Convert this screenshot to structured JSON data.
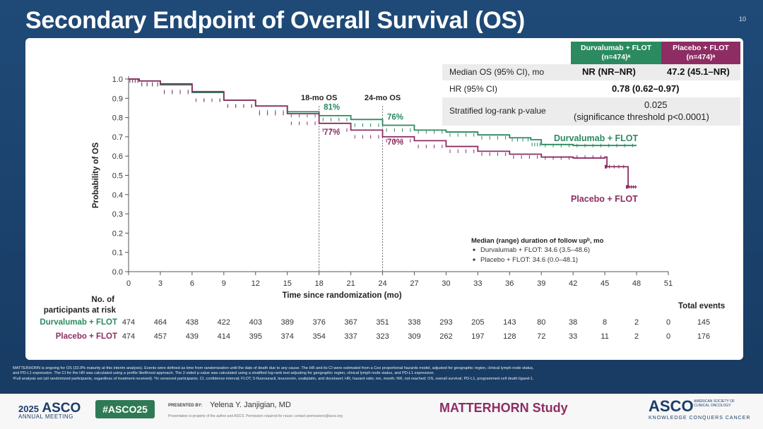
{
  "slide": {
    "title": "Secondary Endpoint of Overall Survival (OS)",
    "slide_number": "10"
  },
  "colors": {
    "durvalumab": "#2b8a5f",
    "placebo": "#8d2d63",
    "brand_navy": "#1a3d6a"
  },
  "table": {
    "header_durvalumab": "Durvalumab + FLOT (n=474)ᵃ",
    "header_durvalumab_l1": "Durvalumab + FLOT",
    "header_durvalumab_l2": "(n=474)ᵃ",
    "header_placebo_l1": "Placebo + FLOT",
    "header_placebo_l2": "(n=474)ᵃ",
    "rows": [
      {
        "label": "Median OS (95% CI), mo",
        "durvalumab": "NR (NR–NR)",
        "placebo": "47.2 (45.1–NR)"
      },
      {
        "label": "HR (95% CI)",
        "value": "0.78 (0.62–0.97)"
      },
      {
        "label": "Stratified log-rank p-value",
        "value_l1": "0.025",
        "value_l2": "(significance threshold p<0.0001)"
      }
    ]
  },
  "chart_data": {
    "type": "line",
    "title": "",
    "xlabel": "Time since randomization (mo)",
    "ylabel": "Probability of OS",
    "xlim": [
      0,
      51
    ],
    "ylim": [
      0,
      1.0
    ],
    "x_ticks": [
      0,
      3,
      6,
      9,
      12,
      15,
      18,
      21,
      24,
      27,
      30,
      33,
      36,
      39,
      42,
      45,
      48,
      51
    ],
    "y_ticks": [
      0.0,
      0.1,
      0.2,
      0.3,
      0.4,
      0.5,
      0.6,
      0.7,
      0.8,
      0.9,
      1.0
    ],
    "y_tick_labels": [
      "0.0",
      "0.1",
      "0.2",
      "0.3",
      "0.4",
      "0.5",
      "0.6",
      "0.7",
      "0.8",
      "0.9",
      "1.0"
    ],
    "series": [
      {
        "name": "Durvalumab + FLOT",
        "color": "#2b8a5f",
        "x": [
          0,
          1,
          3,
          6,
          9,
          12,
          15,
          18,
          21,
          24,
          27,
          30,
          33,
          36,
          38,
          39,
          42,
          45,
          48
        ],
        "y": [
          1.0,
          0.99,
          0.97,
          0.93,
          0.89,
          0.86,
          0.83,
          0.81,
          0.79,
          0.76,
          0.735,
          0.725,
          0.71,
          0.695,
          0.685,
          0.66,
          0.655,
          0.655,
          0.655
        ]
      },
      {
        "name": "Placebo + FLOT",
        "color": "#8d2d63",
        "x": [
          0,
          1,
          3,
          6,
          9,
          12,
          15,
          18,
          21,
          24,
          27,
          30,
          33,
          36,
          39,
          42,
          45,
          45.2,
          47,
          47.2,
          48
        ],
        "y": [
          1.0,
          0.99,
          0.975,
          0.935,
          0.89,
          0.86,
          0.82,
          0.77,
          0.735,
          0.7,
          0.68,
          0.65,
          0.625,
          0.61,
          0.595,
          0.59,
          0.595,
          0.545,
          0.545,
          0.44,
          0.44
        ]
      }
    ],
    "landmarks": [
      {
        "label": "18-mo OS",
        "x": 18,
        "durvalumab": "81%",
        "placebo": "77%"
      },
      {
        "label": "24-mo OS",
        "x": 24,
        "durvalumab": "76%",
        "placebo": "70%"
      }
    ],
    "annotations": {
      "follow_up_title": "Median (range) duration of follow upᵇ, mo",
      "follow_up_durvalumab": "Durvalumab + FLOT: 34.6 (3.5–48.6)",
      "follow_up_placebo": "Placebo + FLOT: 34.6 (0.0–48.1)"
    },
    "risk_table": {
      "title_l1": "No. of",
      "title_l2": "participants at risk",
      "total_events_label": "Total events",
      "rows": [
        {
          "name": "Durvalumab + FLOT",
          "values": [
            "474",
            "464",
            "438",
            "422",
            "403",
            "389",
            "376",
            "367",
            "351",
            "338",
            "293",
            "205",
            "143",
            "80",
            "38",
            "8",
            "2",
            "0"
          ],
          "total": "145"
        },
        {
          "name": "Placebo + FLOT",
          "values": [
            "474",
            "457",
            "439",
            "414",
            "395",
            "374",
            "354",
            "337",
            "323",
            "309",
            "262",
            "197",
            "128",
            "72",
            "33",
            "11",
            "2",
            "0"
          ],
          "total": "176"
        }
      ]
    }
  },
  "footnote": {
    "l1": "MATTERHORN is ongoing for OS (33.9% maturity at this interim analysis). Events were defined as time from randomization until the date of death due to any cause. The HR and its CI were estimated from a Cox proportional hazards model, adjusted for geographic region, clinical lymph node status,",
    "l2": "and PD-L1 expression. The CI for the HR was calculated using a profile likelihood approach. The 2-sided p-value was calculated using a stratified log-rank test adjusting for geographic region, clinical lymph node status, and PD-L1 expression.",
    "l3": "ᵃFull analysis set (all randomized participants, regardless of treatment received). ᵇIn censored participants. CI, confidence interval; FLOT, 5-fluorouracil, leucovorin, oxaliplatin, and docetaxel; HR, hazard ratio; mo, month; NR, not reached; OS, overall survival; PD-L1, programmed cell death ligand-1."
  },
  "footer": {
    "asco_year": "2025",
    "asco_word": "ASCO",
    "asco_meeting": "ANNUAL MEETING",
    "hashtag": "#ASCO25",
    "presented_by": "PRESENTED BY:",
    "presenter": "Yelena Y. Janjigian, MD",
    "presentation_note": "Presentation is property of the author and ASCO. Permission required for reuse; contact permissions@asco.org",
    "study_name": "MATTERHORN Study",
    "asco_right": "ASCO",
    "asco_right_sub": "AMERICAN SOCIETY OF CLINICAL ONCOLOGY",
    "asco_tagline": "KNOWLEDGE CONQUERS CANCER"
  }
}
